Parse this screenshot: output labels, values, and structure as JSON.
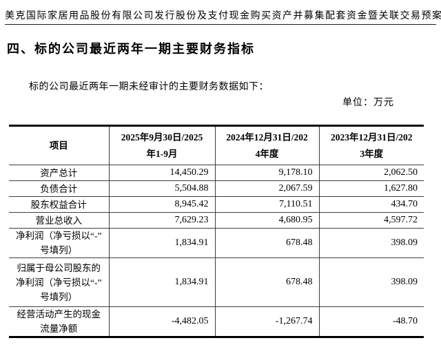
{
  "page": {
    "header_title": "美克国际家居用品股份有限公司发行股份及支付现金购买资产并募集配套资金暨关联交易预案",
    "section_heading": "四、标的公司最近两年一期主要财务指标",
    "intro_text": "标的公司最近两年一期未经审计的主要财务数据如下：",
    "unit_label": "单位：万元"
  },
  "table": {
    "columns": [
      {
        "label": "项目"
      },
      {
        "label": "2025年9月30日/2025\n年1-9月"
      },
      {
        "label": "2024年12月31日/202\n4年度"
      },
      {
        "label": "2023年12月31日/202\n3年度"
      }
    ],
    "rows": [
      {
        "item": "资产总计",
        "values": [
          "14,450.29",
          "9,178.10",
          "2,062.50"
        ]
      },
      {
        "item": "负债合计",
        "values": [
          "5,504.88",
          "2,067.59",
          "1,627.80"
        ]
      },
      {
        "item": "股东权益合计",
        "values": [
          "8,945.42",
          "7,110.51",
          "434.70"
        ]
      },
      {
        "item": "营业总收入",
        "values": [
          "7,629.23",
          "4,680.95",
          "4,597.72"
        ]
      },
      {
        "item": "净利润（净亏损以“-”\n号填列）",
        "values": [
          "1,834.91",
          "678.48",
          "398.09"
        ]
      },
      {
        "item": "归属于母公司股东的\n净利润（净亏损以“-”\n号填列）",
        "values": [
          "1,834.91",
          "678.48",
          "398.09"
        ]
      },
      {
        "item": "经营活动产生的现金\n流量净额",
        "values": [
          "-4,482.05",
          "-1,267.74",
          "-48.70"
        ]
      }
    ]
  },
  "colors": {
    "text": "#000000",
    "background": "#ffffff",
    "border_heavy": "#000000",
    "border_light": "#3c3c3c"
  }
}
